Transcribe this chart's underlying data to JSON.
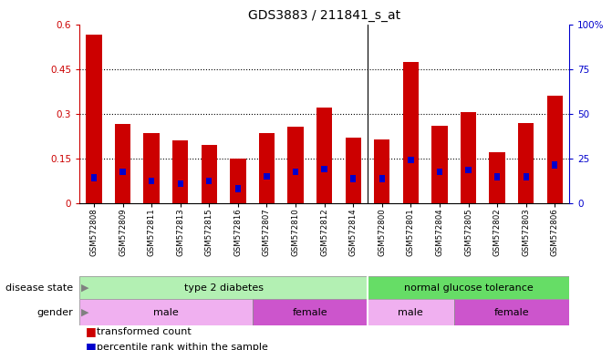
{
  "title": "GDS3883 / 211841_s_at",
  "samples": [
    "GSM572808",
    "GSM572809",
    "GSM572811",
    "GSM572813",
    "GSM572815",
    "GSM572816",
    "GSM572807",
    "GSM572810",
    "GSM572812",
    "GSM572814",
    "GSM572800",
    "GSM572801",
    "GSM572804",
    "GSM572805",
    "GSM572802",
    "GSM572803",
    "GSM572806"
  ],
  "transformed_count": [
    0.565,
    0.265,
    0.235,
    0.21,
    0.195,
    0.15,
    0.235,
    0.255,
    0.32,
    0.22,
    0.215,
    0.475,
    0.26,
    0.305,
    0.17,
    0.27,
    0.36
  ],
  "percentile_rank_scaled": [
    0.085,
    0.105,
    0.075,
    0.065,
    0.075,
    0.048,
    0.09,
    0.105,
    0.115,
    0.082,
    0.082,
    0.145,
    0.105,
    0.11,
    0.088,
    0.088,
    0.128
  ],
  "bar_color": "#cc0000",
  "blue_color": "#0000cc",
  "left_ylim": [
    0,
    0.6
  ],
  "right_ylim": [
    0,
    100
  ],
  "left_yticks": [
    0,
    0.15,
    0.3,
    0.45,
    0.6
  ],
  "left_yticklabels": [
    "0",
    "0.15",
    "0.3",
    "0.45",
    "0.6"
  ],
  "right_yticks": [
    0,
    25,
    50,
    75,
    100
  ],
  "right_yticklabels": [
    "0",
    "25",
    "50",
    "75",
    "100%"
  ],
  "hlines": [
    0.15,
    0.3,
    0.45
  ],
  "disease_divider": 10,
  "disease_blocks": [
    {
      "label": "type 2 diabetes",
      "start": 0,
      "end": 10,
      "color": "#b3f0b3"
    },
    {
      "label": "normal glucose tolerance",
      "start": 10,
      "end": 17,
      "color": "#66dd66"
    }
  ],
  "gender_blocks": [
    {
      "label": "male",
      "start": 0,
      "end": 6,
      "color": "#eeb0ee"
    },
    {
      "label": "female",
      "start": 6,
      "end": 10,
      "color": "#cc66cc"
    },
    {
      "label": "male",
      "start": 10,
      "end": 13,
      "color": "#eeb0ee"
    },
    {
      "label": "female",
      "start": 13,
      "end": 17,
      "color": "#cc66cc"
    }
  ],
  "bar_width": 0.55,
  "blue_bar_width": 0.2,
  "blue_bar_height": 0.022,
  "tick_fontsize": 7.5,
  "title_fontsize": 10,
  "axis_color_left": "#cc0000",
  "axis_color_right": "#0000cc",
  "legend": [
    {
      "label": "transformed count",
      "color": "#cc0000"
    },
    {
      "label": "percentile rank within the sample",
      "color": "#0000cc"
    }
  ]
}
